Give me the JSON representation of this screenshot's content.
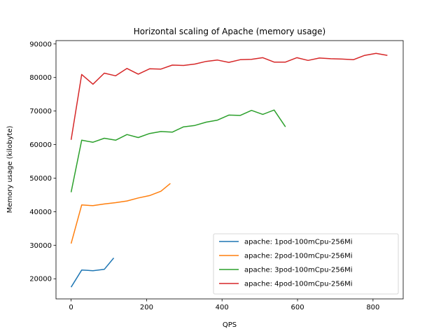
{
  "chart_data": {
    "type": "line",
    "title": "Horizontal scaling of Apache (memory usage)",
    "xlabel": "QPS",
    "ylabel": "Memory usage (kilobyte)",
    "xlim": [
      -40,
      880
    ],
    "ylim": [
      14000,
      91000
    ],
    "xticks": [
      0,
      200,
      400,
      600,
      800
    ],
    "yticks": [
      20000,
      30000,
      40000,
      50000,
      60000,
      70000,
      80000,
      90000
    ],
    "grid": false,
    "legend_position": "lower-right",
    "series": [
      {
        "name": "apache: 1pod-100mCpu-256Mi",
        "color": "#1f77b4",
        "x": [
          0,
          28,
          58,
          88,
          113
        ],
        "y": [
          17500,
          22600,
          22400,
          22800,
          26200
        ]
      },
      {
        "name": "apache: 2pod-100mCpu-256Mi",
        "color": "#ff7f0e",
        "x": [
          0,
          28,
          58,
          88,
          118,
          148,
          178,
          208,
          238,
          263
        ],
        "y": [
          30500,
          42000,
          41800,
          42300,
          42700,
          43200,
          44100,
          44800,
          46100,
          48400
        ]
      },
      {
        "name": "apache: 3pod-100mCpu-256Mi",
        "color": "#2ca02c",
        "x": [
          0,
          28,
          58,
          88,
          118,
          148,
          178,
          208,
          238,
          268,
          298,
          328,
          358,
          388,
          418,
          448,
          478,
          508,
          538,
          568
        ],
        "y": [
          45800,
          61300,
          60700,
          61900,
          61300,
          63000,
          62100,
          63300,
          63900,
          63700,
          65300,
          65700,
          66700,
          67300,
          68800,
          68700,
          70200,
          69000,
          70300,
          65300
        ]
      },
      {
        "name": "apache: 4pod-100mCpu-256Mi",
        "color": "#d62728",
        "x": [
          0,
          28,
          58,
          88,
          118,
          148,
          178,
          208,
          238,
          268,
          298,
          328,
          358,
          388,
          418,
          448,
          478,
          508,
          538,
          568,
          598,
          628,
          658,
          688,
          718,
          748,
          778,
          808,
          838
        ],
        "y": [
          61400,
          80900,
          78000,
          81300,
          80500,
          82700,
          81000,
          82600,
          82500,
          83700,
          83600,
          84000,
          84800,
          85200,
          84500,
          85300,
          85400,
          85900,
          84600,
          84600,
          85900,
          85100,
          85800,
          85600,
          85500,
          85300,
          86600,
          87200,
          86600
        ]
      }
    ]
  }
}
